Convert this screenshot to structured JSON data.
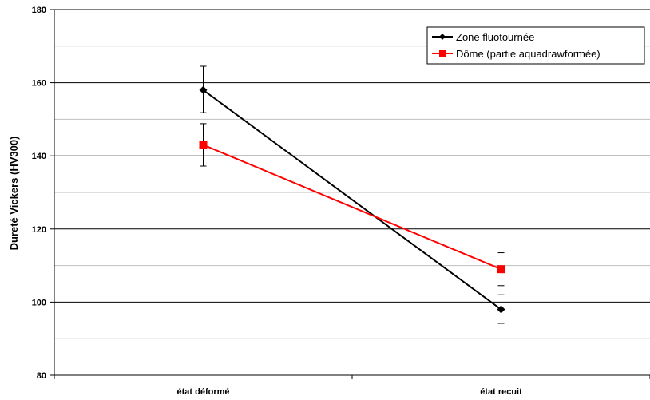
{
  "chart_data": {
    "type": "line",
    "categories": [
      "état déformé",
      "état recuit"
    ],
    "ylabel": "Dureté Vickers (HV300)",
    "xlabel": "",
    "ylim": [
      80,
      180
    ],
    "yticks": [
      80,
      100,
      120,
      140,
      160,
      180
    ],
    "grid_major": true,
    "grid_minor_step": 10,
    "legend_position": "top-right",
    "series": [
      {
        "name": "Zone fluotournée",
        "color": "#000000",
        "marker": "diamond",
        "values": [
          158,
          98
        ],
        "error": [
          [
            6.2,
            6.5
          ],
          [
            3.8,
            4.0
          ]
        ]
      },
      {
        "name": "Dôme (partie aquadrawformée)",
        "color": "#ff0000",
        "marker": "square",
        "values": [
          143,
          109
        ],
        "error": [
          [
            5.8,
            5.8
          ],
          [
            4.5,
            4.5
          ]
        ]
      }
    ]
  }
}
